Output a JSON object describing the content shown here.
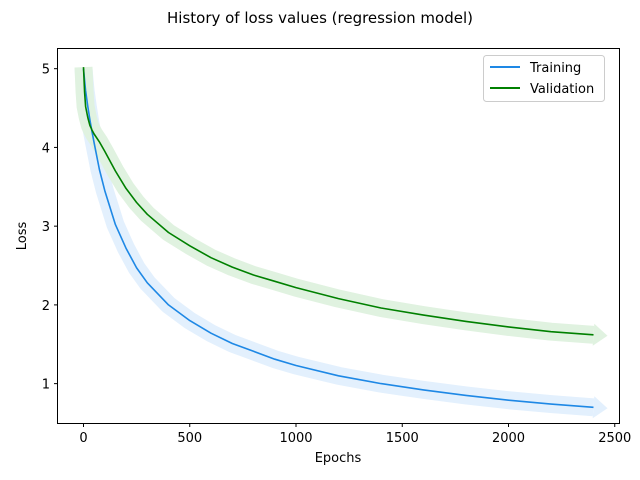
{
  "chart_data": {
    "type": "line",
    "title": "History of loss values (regression model)",
    "xlabel": "Epochs",
    "ylabel": "Loss",
    "xlim": [
      -120,
      2520
    ],
    "ylim": [
      0.5,
      5.25
    ],
    "xticks": [
      0,
      500,
      1000,
      1500,
      2000,
      2500
    ],
    "yticks": [
      1,
      2,
      3,
      4,
      5
    ],
    "grid": false,
    "legend": "top-right",
    "series": [
      {
        "name": "Training",
        "color": "#1e88e5",
        "band_color": "#e3f0fd",
        "x": [
          0,
          5,
          10,
          20,
          30,
          40,
          50,
          75,
          100,
          150,
          200,
          250,
          300,
          400,
          500,
          600,
          700,
          800,
          900,
          1000,
          1200,
          1400,
          1600,
          1800,
          2000,
          2200,
          2400
        ],
        "y": [
          5.0,
          4.85,
          4.72,
          4.52,
          4.35,
          4.2,
          4.06,
          3.72,
          3.45,
          3.02,
          2.72,
          2.47,
          2.28,
          2.0,
          1.8,
          1.64,
          1.51,
          1.41,
          1.31,
          1.23,
          1.1,
          1.0,
          0.92,
          0.85,
          0.79,
          0.74,
          0.7
        ]
      },
      {
        "name": "Validation",
        "color": "#008000",
        "band_color": "#e0f2e0",
        "x": [
          0,
          5,
          10,
          20,
          30,
          40,
          50,
          75,
          100,
          150,
          200,
          250,
          300,
          400,
          500,
          600,
          700,
          800,
          900,
          1000,
          1200,
          1400,
          1600,
          1800,
          2000,
          2200,
          2400
        ],
        "y": [
          5.02,
          4.7,
          4.52,
          4.38,
          4.28,
          4.22,
          4.17,
          4.07,
          3.95,
          3.7,
          3.48,
          3.3,
          3.15,
          2.92,
          2.75,
          2.6,
          2.48,
          2.38,
          2.3,
          2.22,
          2.08,
          1.96,
          1.87,
          1.79,
          1.72,
          1.66,
          1.62
        ]
      }
    ]
  }
}
